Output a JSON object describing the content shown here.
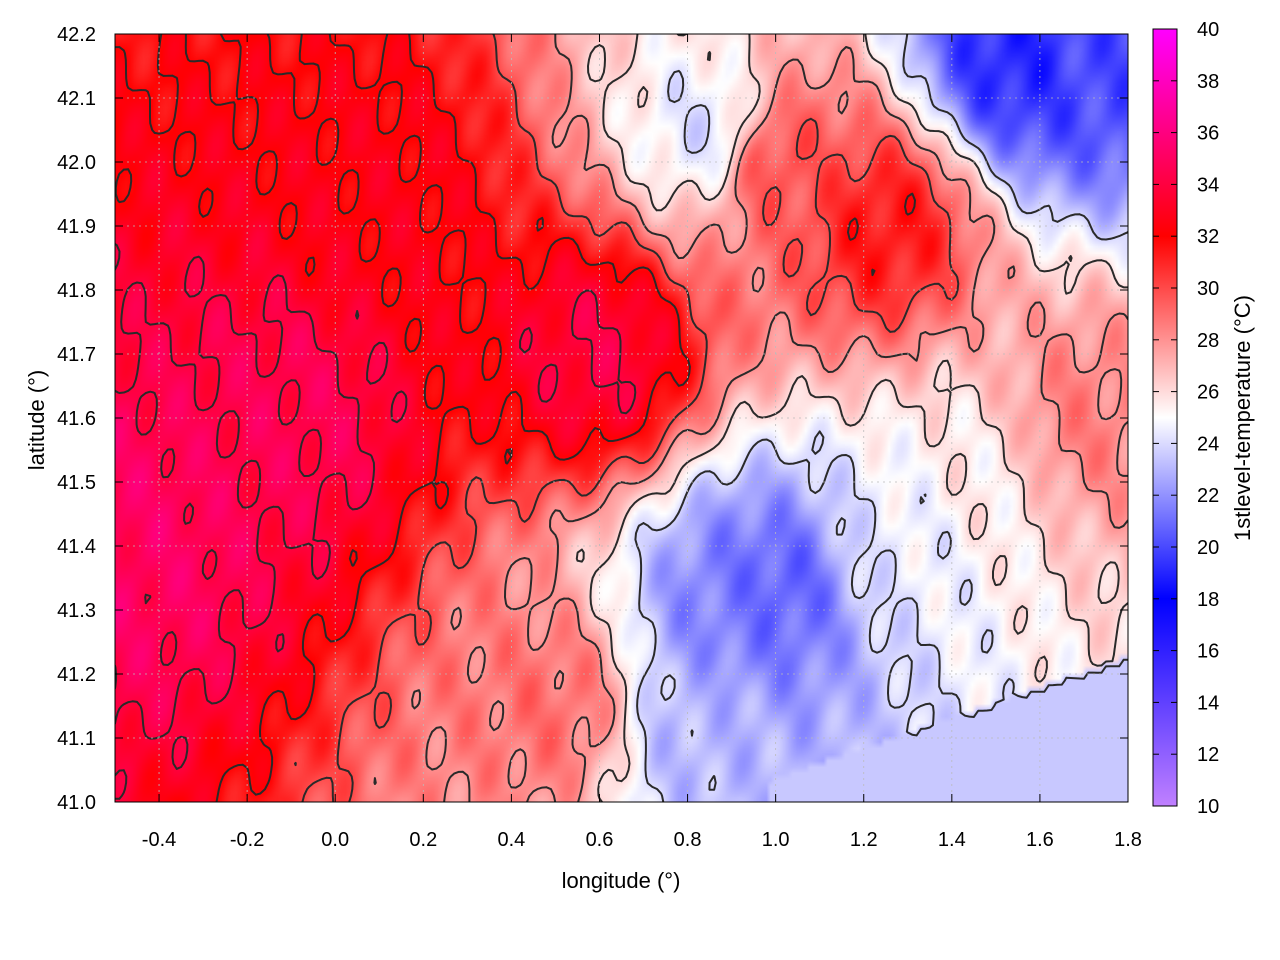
{
  "chart_data": {
    "type": "heatmap",
    "title": "",
    "xlabel": "longitude (°)",
    "ylabel": "latitude (°)",
    "xlim": [
      -0.5,
      1.8
    ],
    "ylim": [
      41.0,
      42.2
    ],
    "x_ticks": [
      -0.4,
      -0.2,
      0.0,
      0.2,
      0.4,
      0.6,
      0.8,
      1.0,
      1.2,
      1.4,
      1.6,
      1.8
    ],
    "x_tick_labels": [
      "-0.4",
      "-0.2",
      "0.0",
      "0.2",
      "0.4",
      "0.6",
      "0.8",
      "1.0",
      "1.2",
      "1.4",
      "1.6",
      "1.8"
    ],
    "y_ticks": [
      41.0,
      41.1,
      41.2,
      41.3,
      41.4,
      41.5,
      41.6,
      41.7,
      41.8,
      41.9,
      42.0,
      42.1,
      42.2
    ],
    "y_tick_labels": [
      "41.0",
      "41.1",
      "41.2",
      "41.3",
      "41.4",
      "41.5",
      "41.6",
      "41.7",
      "41.8",
      "41.9",
      "42.0",
      "42.1",
      "42.2"
    ],
    "grid": true,
    "colorbar": {
      "label": "1stlevel-temperature (°C)",
      "range": [
        10,
        40
      ],
      "ticks": [
        10,
        12,
        14,
        16,
        18,
        20,
        22,
        24,
        26,
        28,
        30,
        32,
        34,
        36,
        38,
        40
      ],
      "tick_labels": [
        "10",
        "12",
        "14",
        "16",
        "18",
        "20",
        "22",
        "24",
        "26",
        "28",
        "30",
        "32",
        "34",
        "36",
        "38",
        "40"
      ],
      "stops": [
        {
          "value": 10,
          "color": "#c080ff"
        },
        {
          "value": 18,
          "color": "#0000ff"
        },
        {
          "value": 25,
          "color": "#ffffff"
        },
        {
          "value": 32,
          "color": "#ff0000"
        },
        {
          "value": 40,
          "color": "#ff00ff"
        }
      ]
    },
    "contour_levels": [
      24,
      26,
      28,
      30,
      32,
      34
    ],
    "sea_region": {
      "value": 23.5,
      "description_color": "#c8c8f8"
    },
    "field_features": [
      {
        "lon": -0.1,
        "lat": 41.6,
        "temp": 34.5
      },
      {
        "lon": 0.6,
        "lat": 41.7,
        "temp": 34.0
      },
      {
        "lon": -0.45,
        "lat": 41.4,
        "temp": 35.0
      },
      {
        "lon": 0.1,
        "lat": 41.95,
        "temp": 32.5
      },
      {
        "lon": 0.9,
        "lat": 41.3,
        "temp": 21.5
      },
      {
        "lon": 1.0,
        "lat": 41.33,
        "temp": 20.5
      },
      {
        "lon": 0.83,
        "lat": 41.1,
        "temp": 23.0
      },
      {
        "lon": 1.55,
        "lat": 42.17,
        "temp": 19.0
      },
      {
        "lon": 1.75,
        "lat": 42.17,
        "temp": 20.0
      },
      {
        "lon": 0.85,
        "lat": 42.05,
        "temp": 24.0
      },
      {
        "lon": 1.45,
        "lat": 41.5,
        "temp": 25.5
      },
      {
        "lon": 1.3,
        "lat": 41.4,
        "temp": 24.5
      },
      {
        "lon": 1.7,
        "lat": 41.6,
        "temp": 28.5
      },
      {
        "lon": 0.5,
        "lat": 41.15,
        "temp": 29.0
      },
      {
        "lon": 1.25,
        "lat": 41.9,
        "temp": 31.5
      },
      {
        "lon": 1.0,
        "lat": 42.0,
        "temp": 30.0
      }
    ]
  },
  "colors": {
    "contour": "#2a2a2a",
    "grid": "#bbbbbb",
    "frame": "#000000"
  }
}
